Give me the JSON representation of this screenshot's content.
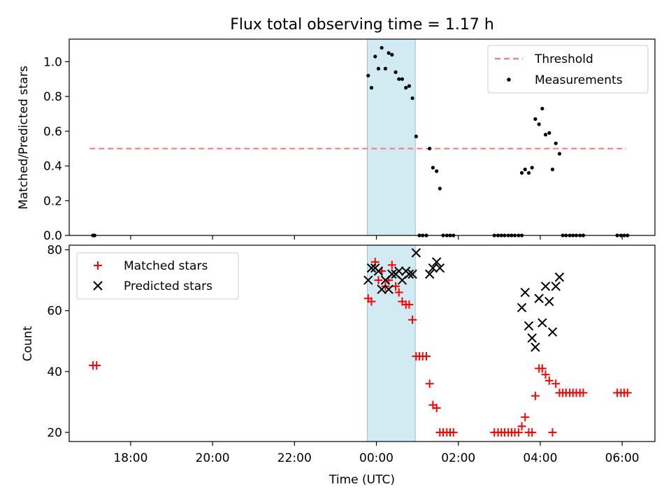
{
  "chart_data": {
    "title": "Flux total observing time = 1.17 h",
    "xlabel": "Time (UTC)",
    "x_ticks": [
      "18:00",
      "20:00",
      "22:00",
      "00:00",
      "02:00",
      "04:00",
      "06:00"
    ],
    "x_tick_hours": [
      18,
      20,
      22,
      24,
      26,
      28,
      30
    ],
    "xlim_hours": [
      16.5,
      30.8
    ],
    "shaded_interval_hours": [
      23.78,
      24.95
    ],
    "shade_color": "#add8e6",
    "panels": [
      {
        "type": "scatter",
        "ylabel": "Matched/Predicted stars",
        "ylim": [
          0,
          1.13
        ],
        "y_ticks": [
          "0.0",
          "0.2",
          "0.4",
          "0.6",
          "0.8",
          "1.0"
        ],
        "y_tick_values": [
          0,
          0.2,
          0.4,
          0.6,
          0.8,
          1.0
        ],
        "legend_position": "top-right",
        "threshold": {
          "name": "Threshold",
          "value": 0.5,
          "x_range_hours": [
            17.0,
            30.1
          ],
          "color": "#f08080"
        },
        "series": [
          {
            "name": "Measurements",
            "marker": "dot",
            "color": "#000000",
            "points": [
              [
                17.08,
                0
              ],
              [
                17.12,
                0
              ],
              [
                23.8,
                0.92
              ],
              [
                23.88,
                0.85
              ],
              [
                23.97,
                1.03
              ],
              [
                24.05,
                0.96
              ],
              [
                24.13,
                1.08
              ],
              [
                24.22,
                0.96
              ],
              [
                24.3,
                1.05
              ],
              [
                24.38,
                1.04
              ],
              [
                24.47,
                0.94
              ],
              [
                24.55,
                0.9
              ],
              [
                24.63,
                0.9
              ],
              [
                24.72,
                0.85
              ],
              [
                24.8,
                0.86
              ],
              [
                24.88,
                0.79
              ],
              [
                24.97,
                0.57
              ],
              [
                25.05,
                0
              ],
              [
                25.13,
                0
              ],
              [
                25.22,
                0
              ],
              [
                25.3,
                0.5
              ],
              [
                25.38,
                0.39
              ],
              [
                25.47,
                0.37
              ],
              [
                25.55,
                0.27
              ],
              [
                25.63,
                0
              ],
              [
                25.72,
                0
              ],
              [
                25.8,
                0
              ],
              [
                25.88,
                0
              ],
              [
                26.88,
                0
              ],
              [
                26.97,
                0
              ],
              [
                27.05,
                0
              ],
              [
                27.13,
                0
              ],
              [
                27.22,
                0
              ],
              [
                27.3,
                0
              ],
              [
                27.38,
                0
              ],
              [
                27.47,
                0
              ],
              [
                27.55,
                0
              ],
              [
                27.55,
                0.36
              ],
              [
                27.63,
                0.38
              ],
              [
                27.72,
                0.36
              ],
              [
                27.8,
                0.39
              ],
              [
                27.88,
                0.67
              ],
              [
                27.97,
                0.64
              ],
              [
                28.05,
                0.73
              ],
              [
                28.13,
                0.58
              ],
              [
                28.22,
                0.59
              ],
              [
                28.3,
                0.38
              ],
              [
                28.38,
                0.53
              ],
              [
                28.47,
                0.47
              ],
              [
                28.55,
                0
              ],
              [
                28.63,
                0
              ],
              [
                28.72,
                0
              ],
              [
                28.8,
                0
              ],
              [
                28.88,
                0
              ],
              [
                28.97,
                0
              ],
              [
                29.05,
                0
              ],
              [
                29.88,
                0
              ],
              [
                29.97,
                0
              ],
              [
                30.05,
                0
              ],
              [
                30.13,
                0
              ]
            ]
          }
        ]
      },
      {
        "type": "scatter",
        "ylabel": "Count",
        "ylim": [
          17,
          81.5
        ],
        "y_ticks": [
          "20",
          "40",
          "60",
          "80"
        ],
        "y_tick_values": [
          20,
          40,
          60,
          80
        ],
        "legend_position": "top-left",
        "series": [
          {
            "name": "Matched stars",
            "marker": "plus",
            "color": "#ff0000",
            "points": [
              [
                17.08,
                42
              ],
              [
                17.17,
                42
              ],
              [
                23.8,
                64
              ],
              [
                23.88,
                63
              ],
              [
                23.97,
                76
              ],
              [
                24.05,
                70
              ],
              [
                24.13,
                73
              ],
              [
                24.22,
                68
              ],
              [
                24.3,
                70
              ],
              [
                24.38,
                75
              ],
              [
                24.47,
                68
              ],
              [
                24.55,
                66
              ],
              [
                24.63,
                63
              ],
              [
                24.72,
                62
              ],
              [
                24.8,
                62
              ],
              [
                24.88,
                57
              ],
              [
                24.97,
                45
              ],
              [
                25.05,
                45
              ],
              [
                25.13,
                45
              ],
              [
                25.22,
                45
              ],
              [
                25.3,
                36
              ],
              [
                25.38,
                29
              ],
              [
                25.47,
                28
              ],
              [
                25.55,
                20
              ],
              [
                25.63,
                20
              ],
              [
                25.72,
                20
              ],
              [
                25.8,
                20
              ],
              [
                25.88,
                20
              ],
              [
                26.88,
                20
              ],
              [
                26.97,
                20
              ],
              [
                27.05,
                20
              ],
              [
                27.13,
                20
              ],
              [
                27.22,
                20
              ],
              [
                27.3,
                20
              ],
              [
                27.38,
                20
              ],
              [
                27.47,
                20
              ],
              [
                27.55,
                22
              ],
              [
                27.63,
                25
              ],
              [
                27.72,
                20
              ],
              [
                27.8,
                20
              ],
              [
                27.88,
                32
              ],
              [
                27.97,
                41
              ],
              [
                28.05,
                41
              ],
              [
                28.13,
                39
              ],
              [
                28.22,
                37
              ],
              [
                28.3,
                20
              ],
              [
                28.38,
                36
              ],
              [
                28.47,
                33
              ],
              [
                28.55,
                33
              ],
              [
                28.63,
                33
              ],
              [
                28.72,
                33
              ],
              [
                28.8,
                33
              ],
              [
                28.88,
                33
              ],
              [
                28.97,
                33
              ],
              [
                29.05,
                33
              ],
              [
                29.88,
                33
              ],
              [
                29.97,
                33
              ],
              [
                30.05,
                33
              ],
              [
                30.13,
                33
              ]
            ]
          },
          {
            "name": "Predicted stars",
            "marker": "cross",
            "color": "#000000",
            "points": [
              [
                23.8,
                70
              ],
              [
                23.88,
                74
              ],
              [
                23.97,
                74
              ],
              [
                24.05,
                73
              ],
              [
                24.13,
                67
              ],
              [
                24.22,
                70
              ],
              [
                24.3,
                67
              ],
              [
                24.38,
                72
              ],
              [
                24.47,
                72
              ],
              [
                24.55,
                73
              ],
              [
                24.63,
                70
              ],
              [
                24.72,
                73
              ],
              [
                24.8,
                72
              ],
              [
                24.88,
                72
              ],
              [
                24.97,
                79
              ],
              [
                25.3,
                72
              ],
              [
                25.38,
                74
              ],
              [
                25.47,
                76
              ],
              [
                25.55,
                74
              ],
              [
                27.55,
                61
              ],
              [
                27.63,
                66
              ],
              [
                27.72,
                55
              ],
              [
                27.8,
                51
              ],
              [
                27.88,
                48
              ],
              [
                27.97,
                64
              ],
              [
                28.05,
                56
              ],
              [
                28.13,
                68
              ],
              [
                28.22,
                63
              ],
              [
                28.3,
                53
              ],
              [
                28.38,
                68
              ],
              [
                28.47,
                71
              ]
            ]
          }
        ]
      }
    ]
  }
}
